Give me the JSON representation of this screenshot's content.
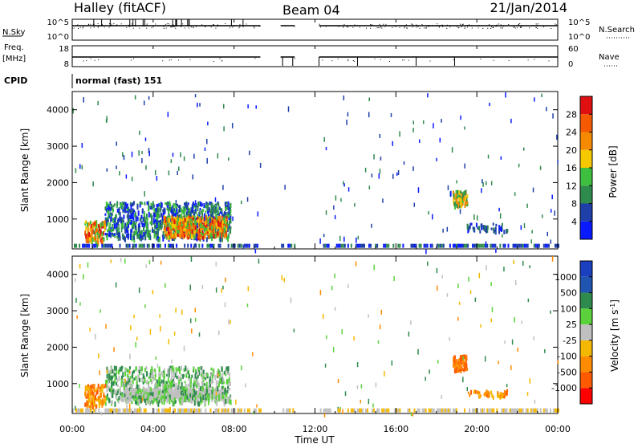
{
  "header": {
    "title": "Halley (fitACF)",
    "beam": "Beam 04",
    "date": "21/Jan/2014"
  },
  "panels": {
    "nsky_label": "N.Sky",
    "nsky_axis_top": "10^5",
    "nsky_axis_bottom": "10^0",
    "nsearch_label": "N.Search",
    "nsearch_axis_top": "10^5",
    "nsearch_axis_bottom": "10^0",
    "freq_label": "Freq.",
    "freq_unit": "[MHz]",
    "freq_axis_top": "18",
    "freq_axis_bottom": "8",
    "nave_label": "Nave",
    "nave_axis_top": "60",
    "nave_axis_bottom": "0",
    "cpid_label": "CPID",
    "cpid_value": "normal (fast) 151"
  },
  "colors": {
    "power": [
      "#0a1aff",
      "#1e3fa8",
      "#2f8a4e",
      "#3fbf3f",
      "#f5c800",
      "#f58a00",
      "#f55a00",
      "#e01010"
    ],
    "velocity": [
      "#ff0000",
      "#ff5a00",
      "#ff8c00",
      "#f5b800",
      "#c0c0c0",
      "#5bd23c",
      "#2f8a4e",
      "#1f55b0",
      "#1a3fbf"
    ]
  },
  "chart_data": [
    {
      "type": "heatmap",
      "parameter": "Power",
      "ylabel": "Slant Range [km]",
      "yticks": [
        1000,
        2000,
        3000,
        4000
      ],
      "ylim": [
        180,
        4500
      ],
      "x_range_hours": [
        0,
        24
      ],
      "colorbar": {
        "label": "Power [dB]",
        "ticks": [
          "4",
          "8",
          "12",
          "16",
          "20",
          "24",
          "28"
        ],
        "range": [
          0,
          30
        ]
      },
      "data_gaps_hours": [
        [
          9.3,
          10.3
        ],
        [
          11.0,
          12.2
        ]
      ],
      "regions": [
        {
          "x": [
            1.6,
            7.8
          ],
          "y": [
            500,
            1500
          ],
          "peak": "24-28 dB near 5-7.5 UT, 600-1000 km"
        },
        {
          "x": [
            0.6,
            1.6
          ],
          "y": [
            400,
            1000
          ],
          "peak": "20-28 dB"
        },
        {
          "x": [
            18.8,
            19.5
          ],
          "y": [
            1400,
            1800
          ],
          "peak": "16-20 dB"
        }
      ]
    },
    {
      "type": "heatmap",
      "parameter": "Velocity",
      "ylabel": "Slant Range [km]",
      "xlabel": "Time UT",
      "yticks": [
        1000,
        2000,
        3000,
        4000
      ],
      "ylim": [
        180,
        4500
      ],
      "xtick_labels": [
        "00:00",
        "04:00",
        "08:00",
        "12:00",
        "16:00",
        "20:00",
        "00:00"
      ],
      "x_range_hours": [
        0,
        24
      ],
      "colorbar": {
        "label": "Velocity [m s-1]",
        "ticks": [
          "1000",
          "500",
          "100",
          "25",
          "-25",
          "-100",
          "-500",
          "-1000"
        ]
      },
      "data_gaps_hours": [
        [
          9.3,
          10.3
        ],
        [
          11.0,
          12.2
        ]
      ],
      "regions": [
        {
          "x": [
            1.6,
            7.8
          ],
          "y": [
            500,
            1500
          ],
          "values": "-25 to 500 m/s, mostly grey and green"
        },
        {
          "x": [
            0.6,
            1.6
          ],
          "y": [
            400,
            1000
          ],
          "values": "-100 to -500 m/s"
        },
        {
          "x": [
            18.8,
            19.5
          ],
          "y": [
            1400,
            1800
          ],
          "values": "-100 to -500 m/s"
        }
      ]
    }
  ]
}
